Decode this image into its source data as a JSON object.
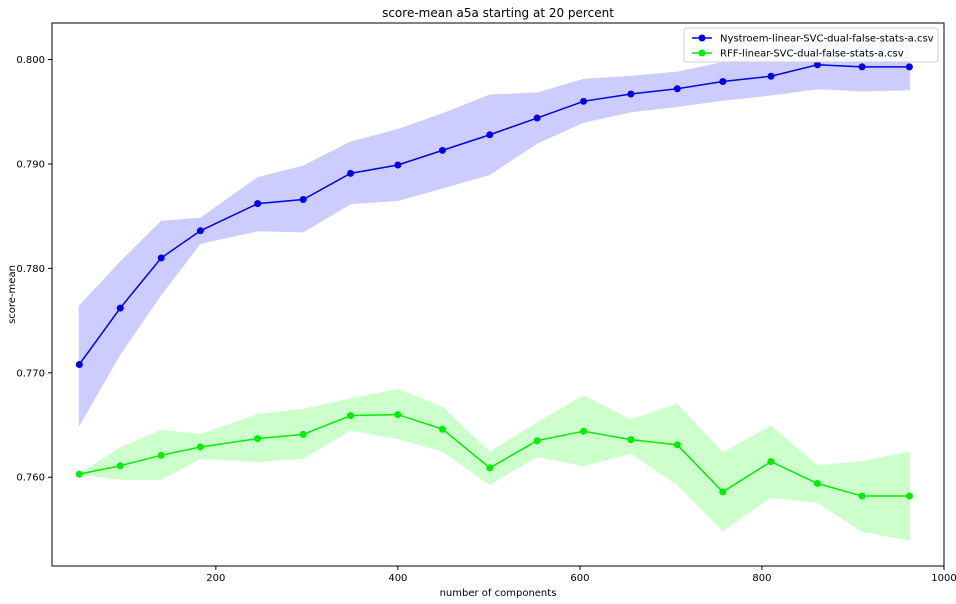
{
  "chart_data": {
    "type": "line",
    "title": "score-mean a5a starting at 20 percent",
    "xlabel": "number of components",
    "ylabel": "score-mean",
    "xlim": [
      20,
      1000
    ],
    "ylim": [
      0.7515,
      0.8035
    ],
    "xticks": [
      200,
      400,
      600,
      800,
      1000
    ],
    "yticks": [
      0.76,
      0.77,
      0.78,
      0.79,
      0.8
    ],
    "ytick_labels": [
      "0.760",
      "0.770",
      "0.780",
      "0.790",
      "0.800"
    ],
    "legend_position": "top-right",
    "x": [
      50,
      95,
      140,
      183,
      246,
      296,
      348,
      400,
      449,
      501,
      553,
      604,
      656,
      707,
      757,
      810,
      861,
      910,
      962
    ],
    "series": [
      {
        "name": "Nystroem-linear-SVC-dual-false-stats-a.csv",
        "color": "#0000e6",
        "fill": "#ccccff",
        "values": [
          0.7708,
          0.7762,
          0.781,
          0.7836,
          0.7862,
          0.7866,
          0.7891,
          0.7899,
          0.7913,
          0.7928,
          0.7944,
          0.796,
          0.7967,
          0.7972,
          0.7979,
          0.7984,
          0.7995,
          0.7993,
          0.7993
        ],
        "upper": [
          0.7764,
          0.7806,
          0.7845,
          0.7848,
          0.7887,
          0.7898,
          0.7921,
          0.7933,
          0.7948,
          0.7966,
          0.7968,
          0.7981,
          0.7984,
          0.7988,
          0.7997,
          0.8003,
          0.8019,
          0.802,
          0.8016
        ],
        "lower": [
          0.765,
          0.7718,
          0.7775,
          0.7824,
          0.7836,
          0.7835,
          0.7862,
          0.7865,
          0.7877,
          0.789,
          0.792,
          0.794,
          0.795,
          0.7955,
          0.7961,
          0.7966,
          0.7972,
          0.797,
          0.7971
        ]
      },
      {
        "name": "RFF-linear-SVC-dual-false-stats-a.csv",
        "color": "#00ee00",
        "fill": "#ccffcc",
        "values": [
          0.7603,
          0.7611,
          0.7621,
          0.7629,
          0.7637,
          0.7641,
          0.7659,
          0.766,
          0.7646,
          0.7609,
          0.7635,
          0.7644,
          0.7636,
          0.7631,
          0.7586,
          0.7615,
          0.7594,
          0.7582,
          0.7582
        ],
        "upper": [
          0.7603,
          0.7628,
          0.7645,
          0.7641,
          0.766,
          0.7665,
          0.7675,
          0.7684,
          0.7667,
          0.7624,
          0.7652,
          0.7678,
          0.7655,
          0.767,
          0.7623,
          0.7649,
          0.7611,
          0.7615,
          0.7624
        ],
        "lower": [
          0.7603,
          0.7598,
          0.7598,
          0.7618,
          0.7615,
          0.7618,
          0.7645,
          0.7637,
          0.7625,
          0.7593,
          0.762,
          0.7611,
          0.7623,
          0.7593,
          0.7549,
          0.7581,
          0.7576,
          0.7548,
          0.754
        ]
      }
    ]
  }
}
